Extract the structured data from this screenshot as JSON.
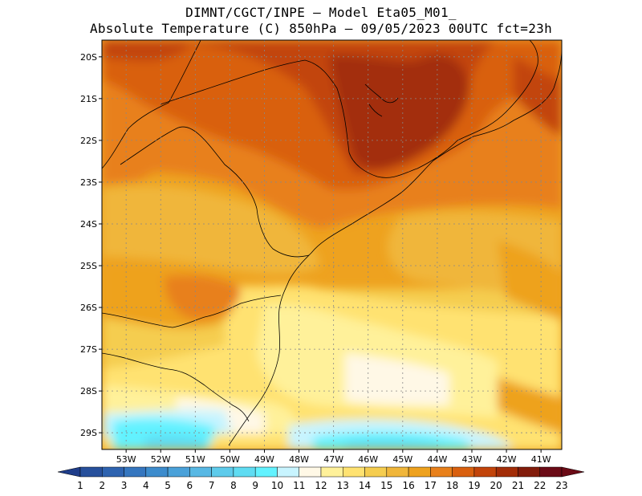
{
  "header": {
    "line1": "DIMNT/CGCT/INPE —  Model Eta05_M01_",
    "line2": "Absolute Temperature (C) 850hPa —  09/05/2023 00UTC fct=23h"
  },
  "map": {
    "lat_labels": [
      "20S",
      "21S",
      "22S",
      "23S",
      "24S",
      "25S",
      "26S",
      "27S",
      "28S",
      "29S"
    ],
    "lon_labels": [
      "53W",
      "52W",
      "51W",
      "50W",
      "49W",
      "48W",
      "47W",
      "46W",
      "45W",
      "44W",
      "43W",
      "42W",
      "41W"
    ],
    "lat_values": [
      -20,
      -21,
      -22,
      -23,
      -24,
      -25,
      -26,
      -27,
      -28,
      -29
    ],
    "lon_values": [
      -53,
      -52,
      -51,
      -50,
      -49,
      -48,
      -47,
      -46,
      -45,
      -44,
      -43,
      -42,
      -41
    ],
    "lat_range": [
      -29.4,
      -19.6
    ],
    "lon_range": [
      -53.7,
      -40.4
    ]
  },
  "colorbar": {
    "labels": [
      "1",
      "2",
      "3",
      "4",
      "5",
      "6",
      "7",
      "8",
      "9",
      "10",
      "11",
      "12",
      "13",
      "14",
      "15",
      "16",
      "17",
      "18",
      "19",
      "20",
      "21",
      "22",
      "23"
    ],
    "colors": [
      "#1f3d8a",
      "#27509c",
      "#2e63b0",
      "#3576bf",
      "#3d8ccd",
      "#4aa1d9",
      "#58b8e4",
      "#5ecbeb",
      "#5fdcf2",
      "#62f2ff",
      "#c8f4ff",
      "#fff8e6",
      "#fff19a",
      "#ffe271",
      "#f5cd4f",
      "#f0b63a",
      "#eea21f",
      "#e8801b",
      "#d9600f",
      "#c2440a",
      "#a32d08",
      "#821c0b",
      "#6b0b16"
    ],
    "under_color": "#1f3d8a",
    "over_color": "#6b0b16"
  }
}
